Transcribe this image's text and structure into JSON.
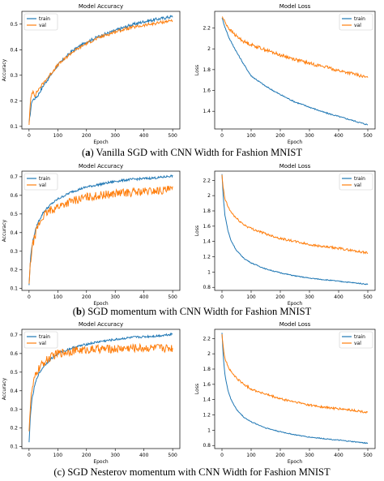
{
  "colors": {
    "train": "#1f77b4",
    "val": "#ff7f0e"
  },
  "captions": [
    {
      "label": "a",
      "text": " Vanilla SGD with CNN Width for Fashion MNIST"
    },
    {
      "label": "b",
      "text": " SGD momentum with CNN Width for Fashion MNIST"
    },
    {
      "label": "",
      "text": "(c) SGD Nesterov momentum with CNN Width for Fashion MNIST"
    }
  ],
  "chart_data": [
    {
      "type": "line",
      "title": "Model Accuracy",
      "xlabel": "Epoch",
      "ylabel": "Accuracy",
      "xlim": [
        -25,
        525
      ],
      "ylim": [
        0.09,
        0.55
      ],
      "xticks": [
        0,
        100,
        200,
        300,
        400,
        500
      ],
      "yticks": [
        0.1,
        0.2,
        0.3,
        0.4,
        0.5
      ],
      "legend": "top-left",
      "series": [
        {
          "name": "train",
          "color": "#1f77b4",
          "x": [
            0,
            5,
            10,
            20,
            30,
            50,
            75,
            100,
            150,
            200,
            250,
            300,
            350,
            400,
            450,
            500
          ],
          "y": [
            0.11,
            0.16,
            0.2,
            0.21,
            0.22,
            0.26,
            0.3,
            0.34,
            0.395,
            0.43,
            0.455,
            0.475,
            0.495,
            0.51,
            0.52,
            0.53
          ]
        },
        {
          "name": "val",
          "color": "#ff7f0e",
          "x": [
            0,
            5,
            10,
            15,
            20,
            30,
            50,
            75,
            100,
            150,
            200,
            250,
            300,
            350,
            400,
            450,
            500
          ],
          "y": [
            0.11,
            0.2,
            0.23,
            0.24,
            0.22,
            0.24,
            0.27,
            0.305,
            0.34,
            0.39,
            0.425,
            0.45,
            0.47,
            0.485,
            0.495,
            0.505,
            0.515
          ]
        }
      ]
    },
    {
      "type": "line",
      "title": "Model Loss",
      "xlabel": "Epoch",
      "ylabel": "Loss",
      "xlim": [
        -25,
        525
      ],
      "ylim": [
        1.23,
        2.36
      ],
      "xticks": [
        0,
        100,
        200,
        300,
        400,
        500
      ],
      "yticks": [
        1.4,
        1.6,
        1.8,
        2.0,
        2.2
      ],
      "legend": "top-right",
      "series": [
        {
          "name": "train",
          "color": "#1f77b4",
          "x": [
            0,
            10,
            25,
            50,
            75,
            100,
            150,
            200,
            250,
            300,
            350,
            400,
            450,
            500
          ],
          "y": [
            2.3,
            2.21,
            2.1,
            1.97,
            1.85,
            1.74,
            1.64,
            1.56,
            1.49,
            1.44,
            1.39,
            1.35,
            1.31,
            1.27
          ]
        },
        {
          "name": "val",
          "color": "#ff7f0e",
          "x": [
            0,
            10,
            25,
            50,
            75,
            100,
            150,
            200,
            250,
            300,
            350,
            400,
            450,
            500
          ],
          "y": [
            2.31,
            2.26,
            2.19,
            2.12,
            2.07,
            2.04,
            1.99,
            1.94,
            1.9,
            1.86,
            1.83,
            1.79,
            1.76,
            1.72
          ]
        }
      ]
    },
    {
      "type": "line",
      "title": "Model Accuracy",
      "xlabel": "Epoch",
      "ylabel": "Accuracy",
      "xlim": [
        -25,
        525
      ],
      "ylim": [
        0.09,
        0.73
      ],
      "xticks": [
        0,
        100,
        200,
        300,
        400,
        500
      ],
      "yticks": [
        0.1,
        0.2,
        0.3,
        0.4,
        0.5,
        0.6,
        0.7
      ],
      "legend": "top-left",
      "series": [
        {
          "name": "train",
          "color": "#1f77b4",
          "x": [
            0,
            5,
            10,
            20,
            30,
            50,
            75,
            100,
            150,
            200,
            250,
            300,
            350,
            400,
            450,
            500
          ],
          "y": [
            0.12,
            0.26,
            0.33,
            0.4,
            0.45,
            0.51,
            0.55,
            0.58,
            0.62,
            0.645,
            0.66,
            0.675,
            0.685,
            0.69,
            0.695,
            0.705
          ]
        },
        {
          "name": "val",
          "color": "#ff7f0e",
          "x": [
            0,
            5,
            10,
            20,
            30,
            50,
            75,
            100,
            150,
            200,
            250,
            300,
            350,
            400,
            450,
            500
          ],
          "y": [
            0.12,
            0.24,
            0.31,
            0.38,
            0.43,
            0.49,
            0.52,
            0.54,
            0.57,
            0.59,
            0.6,
            0.61,
            0.615,
            0.62,
            0.625,
            0.63
          ]
        }
      ]
    },
    {
      "type": "line",
      "title": "Model Loss",
      "xlabel": "Epoch",
      "ylabel": "Loss",
      "xlim": [
        -25,
        525
      ],
      "ylim": [
        0.76,
        2.32
      ],
      "xticks": [
        0,
        100,
        200,
        300,
        400,
        500
      ],
      "yticks": [
        0.8,
        1.0,
        1.2,
        1.4,
        1.6,
        1.8,
        2.0,
        2.2
      ],
      "legend": "top-right",
      "series": [
        {
          "name": "train",
          "color": "#1f77b4",
          "x": [
            0,
            5,
            10,
            20,
            30,
            50,
            75,
            100,
            150,
            200,
            250,
            300,
            350,
            400,
            450,
            500
          ],
          "y": [
            2.28,
            1.95,
            1.75,
            1.55,
            1.42,
            1.28,
            1.18,
            1.12,
            1.04,
            0.99,
            0.95,
            0.92,
            0.9,
            0.88,
            0.86,
            0.84
          ]
        },
        {
          "name": "val",
          "color": "#ff7f0e",
          "x": [
            0,
            5,
            10,
            20,
            30,
            50,
            75,
            100,
            150,
            200,
            250,
            300,
            350,
            400,
            450,
            500
          ],
          "y": [
            2.26,
            2.07,
            1.96,
            1.86,
            1.79,
            1.7,
            1.62,
            1.57,
            1.5,
            1.44,
            1.4,
            1.36,
            1.33,
            1.31,
            1.28,
            1.25
          ]
        }
      ]
    },
    {
      "type": "line",
      "title": "Model Accuracy",
      "xlabel": "Epoch",
      "ylabel": "Accuracy",
      "xlim": [
        -25,
        525
      ],
      "ylim": [
        0.09,
        0.73
      ],
      "xticks": [
        0,
        100,
        200,
        300,
        400,
        500
      ],
      "yticks": [
        0.1,
        0.2,
        0.3,
        0.4,
        0.5,
        0.6,
        0.7
      ],
      "legend": "top-left",
      "series": [
        {
          "name": "train",
          "color": "#1f77b4",
          "x": [
            0,
            5,
            10,
            20,
            30,
            50,
            75,
            100,
            150,
            200,
            250,
            300,
            350,
            400,
            450,
            500
          ],
          "y": [
            0.12,
            0.28,
            0.35,
            0.43,
            0.48,
            0.53,
            0.57,
            0.6,
            0.63,
            0.65,
            0.665,
            0.675,
            0.685,
            0.69,
            0.695,
            0.705
          ]
        },
        {
          "name": "val",
          "color": "#ff7f0e",
          "x": [
            0,
            5,
            10,
            20,
            30,
            50,
            75,
            100,
            150,
            200,
            250,
            300,
            350,
            400,
            450,
            500
          ],
          "y": [
            0.2,
            0.33,
            0.4,
            0.47,
            0.51,
            0.55,
            0.58,
            0.6,
            0.615,
            0.62,
            0.625,
            0.625,
            0.63,
            0.63,
            0.63,
            0.63
          ]
        }
      ]
    },
    {
      "type": "line",
      "title": "Model Loss",
      "xlabel": "Epoch",
      "ylabel": "Loss",
      "xlim": [
        -25,
        525
      ],
      "ylim": [
        0.76,
        2.32
      ],
      "xticks": [
        0,
        100,
        200,
        300,
        400,
        500
      ],
      "yticks": [
        0.8,
        1.0,
        1.2,
        1.4,
        1.6,
        1.8,
        2.0,
        2.2
      ],
      "legend": "top-right",
      "series": [
        {
          "name": "train",
          "color": "#1f77b4",
          "x": [
            0,
            5,
            10,
            20,
            30,
            50,
            75,
            100,
            150,
            200,
            250,
            300,
            350,
            400,
            450,
            500
          ],
          "y": [
            2.28,
            1.93,
            1.73,
            1.53,
            1.41,
            1.27,
            1.17,
            1.11,
            1.03,
            0.98,
            0.94,
            0.91,
            0.89,
            0.87,
            0.85,
            0.83
          ]
        },
        {
          "name": "val",
          "color": "#ff7f0e",
          "x": [
            0,
            5,
            10,
            20,
            30,
            50,
            75,
            100,
            150,
            200,
            250,
            300,
            350,
            400,
            450,
            500
          ],
          "y": [
            2.26,
            2.06,
            1.95,
            1.84,
            1.77,
            1.68,
            1.6,
            1.54,
            1.47,
            1.41,
            1.37,
            1.33,
            1.3,
            1.28,
            1.26,
            1.23
          ]
        }
      ]
    }
  ]
}
